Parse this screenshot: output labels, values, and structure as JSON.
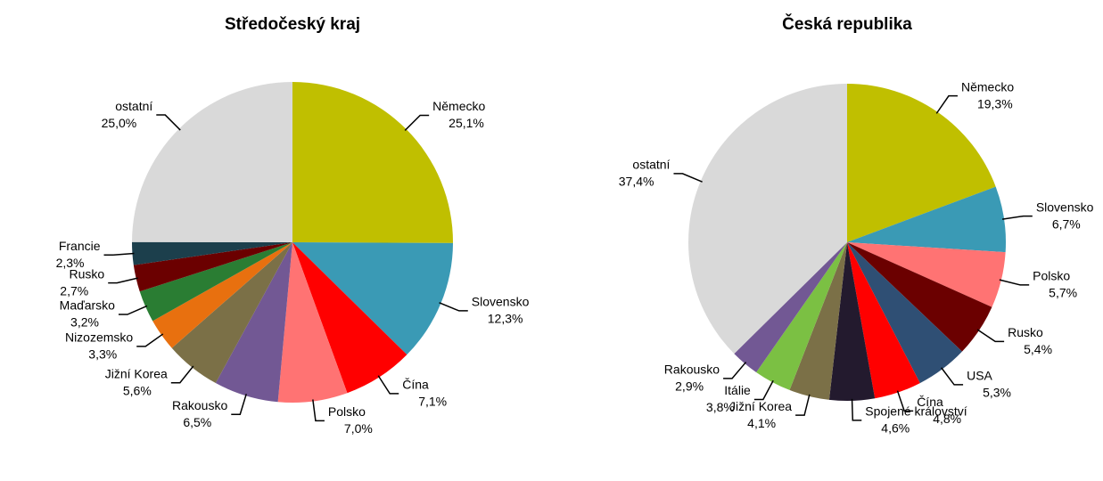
{
  "chart_data": [
    {
      "type": "pie",
      "title": "Středočeský kraj",
      "categories": [
        "Německo",
        "Slovensko",
        "Čína",
        "Polsko",
        "Rakousko",
        "Jižní Korea",
        "Nizozemsko",
        "Maďarsko",
        "Rusko",
        "Francie",
        "ostatní"
      ],
      "values": [
        25.1,
        12.3,
        7.1,
        7.0,
        6.5,
        5.6,
        3.3,
        3.2,
        2.7,
        2.3,
        25.0
      ],
      "value_labels": [
        "25,1%",
        "12,3%",
        "7,1%",
        "7,0%",
        "6,5%",
        "5,6%",
        "3,3%",
        "3,2%",
        "2,7%",
        "2,3%",
        "25,0%"
      ],
      "colors": [
        "#c0bf00",
        "#3a9ab5",
        "#ff0000",
        "#ff7373",
        "#725894",
        "#7b7047",
        "#e8700f",
        "#2a7d33",
        "#6b0000",
        "#1c3f4c",
        "#d9d9d9"
      ]
    },
    {
      "type": "pie",
      "title": "Česká republika",
      "categories": [
        "Německo",
        "Slovensko",
        "Polsko",
        "Rusko",
        "USA",
        "Čína",
        "Spojené království",
        "Jižní Korea",
        "Itálie",
        "Rakousko",
        "ostatní"
      ],
      "values": [
        19.3,
        6.7,
        5.7,
        5.4,
        5.3,
        4.8,
        4.6,
        4.1,
        3.8,
        2.9,
        37.4
      ],
      "value_labels": [
        "19,3%",
        "6,7%",
        "5,7%",
        "5,4%",
        "5,3%",
        "4,8%",
        "4,6%",
        "4,1%",
        "3,8%",
        "2,9%",
        "37,4%"
      ],
      "colors": [
        "#c0bf00",
        "#3a9ab5",
        "#ff7373",
        "#6b0000",
        "#2f4f74",
        "#ff0000",
        "#231a2e",
        "#7b7047",
        "#7bc043",
        "#725894",
        "#d9d9d9"
      ]
    }
  ]
}
